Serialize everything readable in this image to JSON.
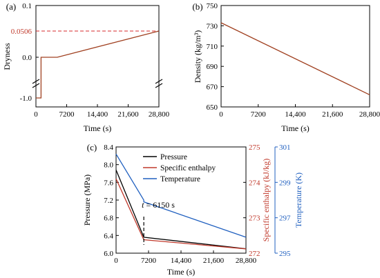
{
  "chart_data": [
    {
      "panel": "(a)",
      "type": "line",
      "ylabel": "Dryness",
      "xlabel": "Time (s)",
      "xticks": [
        "0",
        "7200",
        "14,400",
        "21,600",
        "28,800"
      ],
      "yticks": [
        "-1.0",
        "0.0",
        "0.1"
      ],
      "xlim": [
        0,
        28800
      ],
      "ylim_upper": [
        0.0,
        0.1
      ],
      "axis_break": true,
      "reference_line": {
        "value": 0.0506,
        "label": "0.0506",
        "color": "#d62728",
        "style": "dashed"
      },
      "series": [
        {
          "color": "#a04020",
          "x": [
            0,
            1200,
            1200,
            5000,
            28800
          ],
          "y": [
            -1.0,
            -1.0,
            0.0,
            0.0,
            0.0506
          ]
        }
      ]
    },
    {
      "panel": "(b)",
      "type": "line",
      "ylabel": "Density (kg/m³)",
      "xlabel": "Time (s)",
      "xticks": [
        "0",
        "7200",
        "14,400",
        "21,600",
        "28,800"
      ],
      "yticks": [
        "650",
        "670",
        "690",
        "710",
        "730",
        "750"
      ],
      "xlim": [
        0,
        28800
      ],
      "ylim": [
        650,
        750
      ],
      "series": [
        {
          "color": "#a04020",
          "x": [
            0,
            28800
          ],
          "y": [
            733,
            662
          ]
        }
      ]
    },
    {
      "panel": "(c)",
      "type": "line",
      "xlabel": "Time (s)",
      "xticks": [
        "0",
        "7200",
        "14,400",
        "21,600",
        "28,800"
      ],
      "xlim": [
        0,
        28800
      ],
      "axes": {
        "pressure": {
          "label": "Pressure (MPa)",
          "ylim": [
            6.0,
            8.4
          ],
          "ticks": [
            "6.0",
            "6.4",
            "6.8",
            "7.2",
            "7.6",
            "8.0",
            "8.4"
          ],
          "color": "#000000"
        },
        "enthalpy": {
          "label": "Specific enthalpy (kJ/kg)",
          "ylim": [
            272,
            275
          ],
          "ticks": [
            "272",
            "273",
            "274",
            "275"
          ],
          "color": "#c0392b"
        },
        "temperature": {
          "label": "Temperature (K)",
          "ylim": [
            295,
            301
          ],
          "ticks": [
            "295",
            "297",
            "299",
            "301"
          ],
          "color": "#1f5fbf"
        }
      },
      "annotation": {
        "text_italic": "t",
        "text_rest": " = 6150 s",
        "x": 6150
      },
      "series": [
        {
          "name": "Pressure",
          "axis": "pressure",
          "color": "#000000",
          "x": [
            0,
            6150,
            28800
          ],
          "y": [
            7.88,
            6.36,
            6.1
          ]
        },
        {
          "name": "Specific enthalpy",
          "axis": "enthalpy",
          "color": "#c0392b",
          "x": [
            0,
            6150,
            28800
          ],
          "y": [
            274.1,
            272.38,
            272.12
          ]
        },
        {
          "name": "Temperature",
          "axis": "temperature",
          "color": "#1f5fbf",
          "x": [
            0,
            6150,
            6150,
            28800
          ],
          "y": [
            300.6,
            298.0,
            297.9,
            295.9
          ]
        }
      ]
    }
  ]
}
